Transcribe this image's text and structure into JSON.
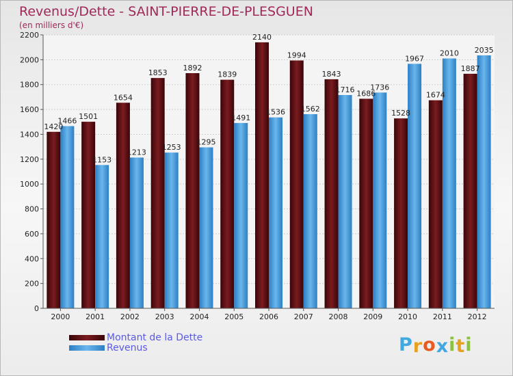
{
  "chart_data": {
    "type": "bar",
    "title": "Revenus/Dette - SAINT-PIERRE-DE-PLESGUEN",
    "subtitle": "(en milliers d'€)",
    "categories": [
      "2000",
      "2001",
      "2002",
      "2003",
      "2004",
      "2005",
      "2006",
      "2007",
      "2008",
      "2009",
      "2010",
      "2011",
      "2012"
    ],
    "series": [
      {
        "name": "Montant de la Dette",
        "color": "#7a1c20",
        "values": [
          1420,
          1501,
          1654,
          1853,
          1892,
          1839,
          2140,
          1994,
          1843,
          1686,
          1528,
          1674,
          1887
        ],
        "labels": [
          "1420",
          "1501",
          "1654",
          "1853",
          "1892",
          "1839",
          "2140",
          "1994",
          "1843",
          "1686",
          "1528",
          "1674",
          "1887"
        ]
      },
      {
        "name": "Revenus",
        "color": "#4a9fe0",
        "values": [
          1466,
          1153,
          1213,
          1253,
          1295,
          1491,
          1536,
          1562,
          1716,
          1736,
          1967,
          2010,
          2035
        ],
        "labels": [
          "1466",
          "1153",
          "1213",
          "1253",
          "1295",
          "1491",
          "1536",
          "1562",
          "1716",
          "1736",
          "1967",
          "2010",
          "2035"
        ]
      }
    ],
    "yticks": [
      "0",
      "200",
      "400",
      "600",
      "800",
      "1000",
      "1200",
      "1400",
      "1600",
      "1800",
      "2000",
      "2200"
    ],
    "ylim": [
      0,
      2200
    ],
    "grid": true,
    "legend": "bottom-left"
  },
  "logo": {
    "letters": [
      "P",
      "r",
      "o",
      "x",
      "i",
      "t",
      "i"
    ],
    "colors": [
      "#3fa9e0",
      "#e8a020",
      "#e85a20",
      "#3fa9e0",
      "#8cc040",
      "#e8a020",
      "#8cc040"
    ]
  }
}
